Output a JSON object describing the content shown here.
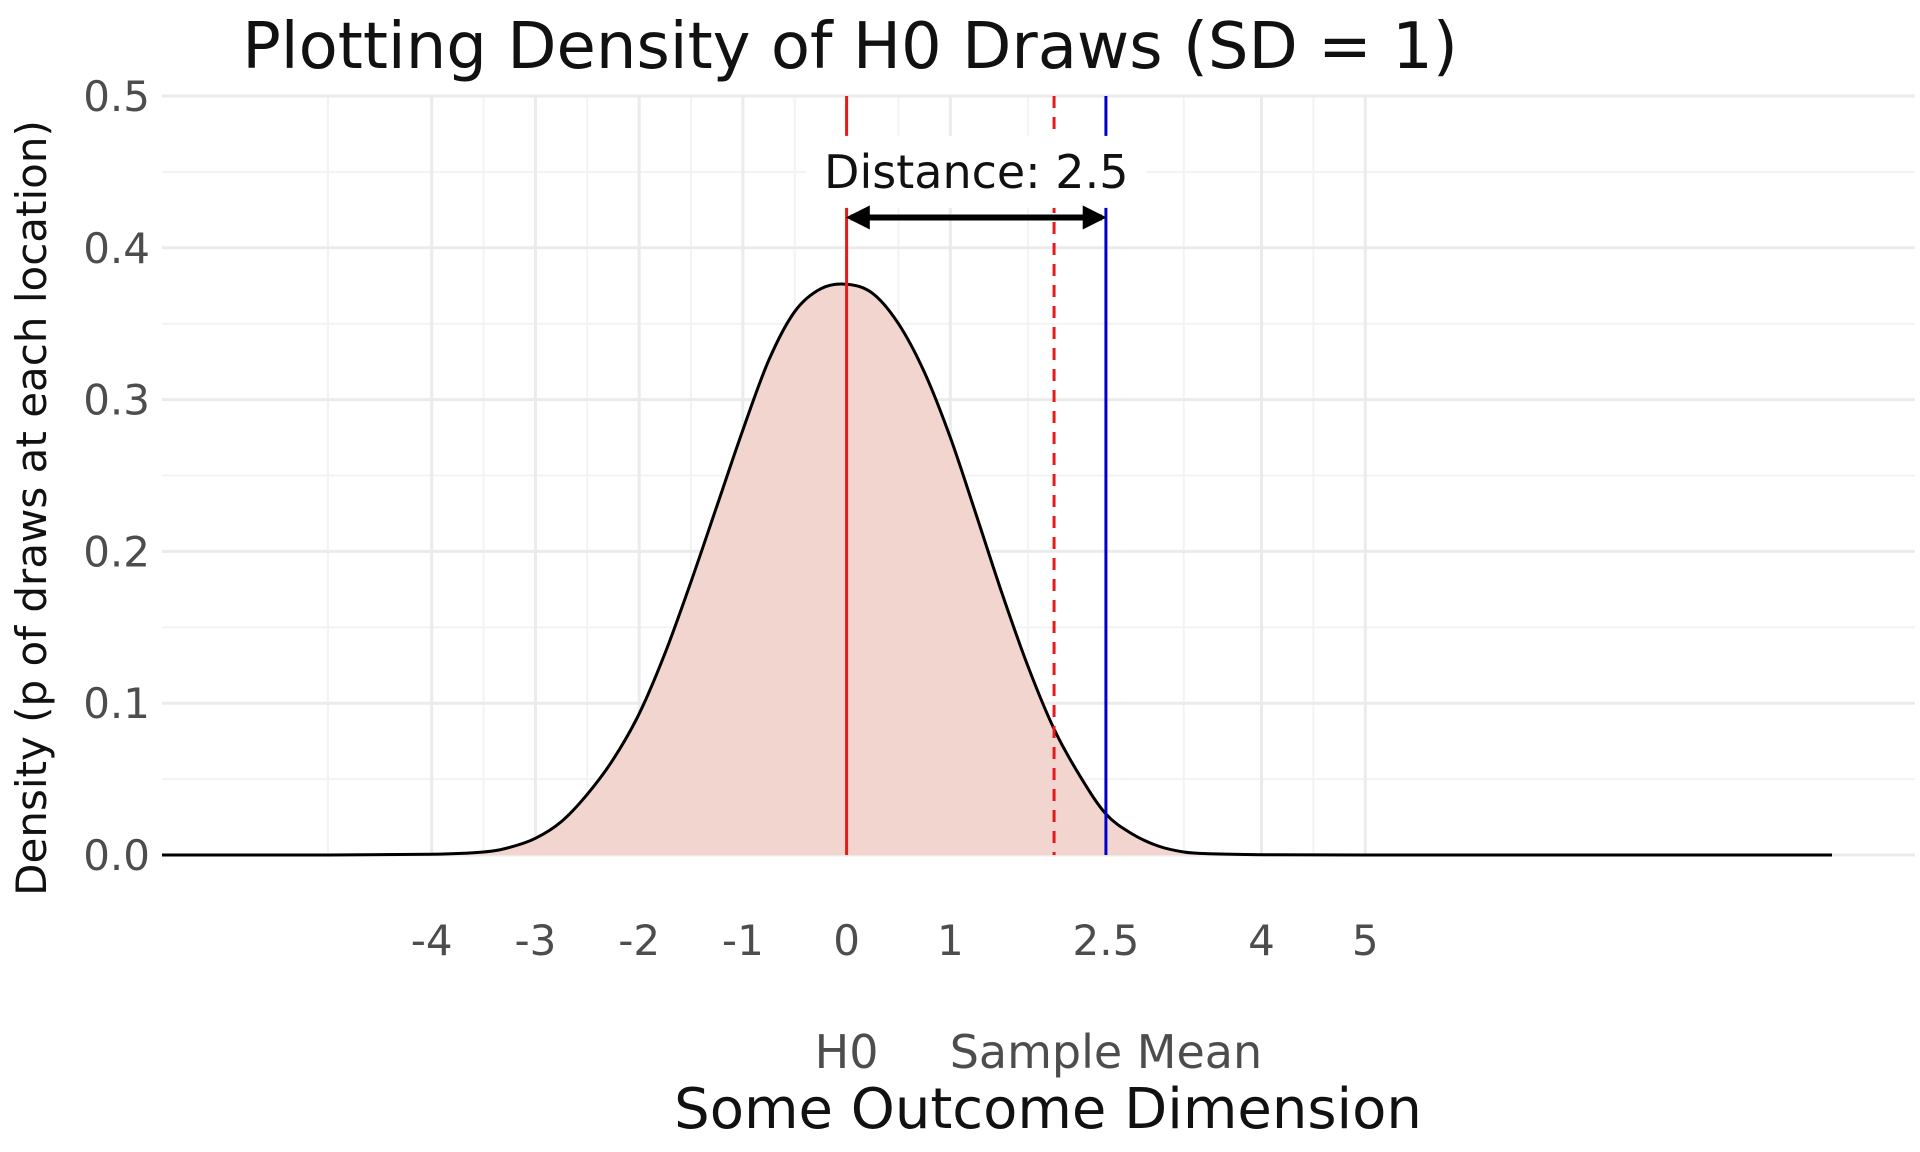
{
  "chart_data": {
    "type": "area",
    "title": "Plotting Density of H0 Draws (SD = 1)",
    "xlabel": "Some Outcome Dimension",
    "ylabel": "Density (p of draws at each location)",
    "xlim": [
      -6.6,
      10.3
    ],
    "ylim": [
      0,
      0.5
    ],
    "x_ticks": [
      {
        "value": -4,
        "label": "-4"
      },
      {
        "value": -3,
        "label": "-3"
      },
      {
        "value": -2,
        "label": "-2"
      },
      {
        "value": -1,
        "label": "-1"
      },
      {
        "value": 0,
        "label": "0"
      },
      {
        "value": 1,
        "label": "1"
      },
      {
        "value": 2.5,
        "label": "2.5"
      },
      {
        "value": 4,
        "label": "4"
      },
      {
        "value": 5,
        "label": "5"
      }
    ],
    "y_ticks": [
      {
        "value": 0.0,
        "label": "0.0"
      },
      {
        "value": 0.1,
        "label": "0.1"
      },
      {
        "value": 0.2,
        "label": "0.2"
      },
      {
        "value": 0.3,
        "label": "0.3"
      },
      {
        "value": 0.4,
        "label": "0.4"
      },
      {
        "value": 0.5,
        "label": "0.5"
      }
    ],
    "x_sublabels": [
      {
        "value": 0,
        "label": "H0"
      },
      {
        "value": 2.5,
        "label": "Sample Mean"
      }
    ],
    "grid": true,
    "density": {
      "fill": "#f2d5cf",
      "stroke": "#000000",
      "x": [
        -6.6,
        -5,
        -4,
        -3.5,
        -3.25,
        -3,
        -2.75,
        -2.5,
        -2.25,
        -2,
        -1.75,
        -1.5,
        -1.25,
        -1,
        -0.75,
        -0.5,
        -0.25,
        0,
        0.25,
        0.5,
        0.75,
        1,
        1.25,
        1.5,
        1.75,
        2,
        2.25,
        2.5,
        2.75,
        3,
        3.25,
        3.5,
        4,
        5,
        7,
        9.5
      ],
      "y": [
        0,
        0,
        0.0005,
        0.002,
        0.005,
        0.011,
        0.022,
        0.04,
        0.063,
        0.093,
        0.133,
        0.18,
        0.23,
        0.28,
        0.326,
        0.358,
        0.373,
        0.376,
        0.37,
        0.35,
        0.318,
        0.275,
        0.224,
        0.172,
        0.124,
        0.083,
        0.052,
        0.027,
        0.014,
        0.006,
        0.002,
        0.0008,
        0.0002,
        0,
        0,
        0
      ]
    },
    "vlines": [
      {
        "x": 0,
        "color": "#e41a1c",
        "style": "solid"
      },
      {
        "x": 2,
        "color": "#e41a1c",
        "style": "dashed"
      },
      {
        "x": 2.5,
        "color": "#0000cc",
        "style": "solid"
      }
    ],
    "arrow": {
      "x_start": 0,
      "x_end": 2.5,
      "y": 0.42
    },
    "annotation": {
      "text": "Distance: 2.5",
      "x": 1.25,
      "y": 0.45
    }
  }
}
